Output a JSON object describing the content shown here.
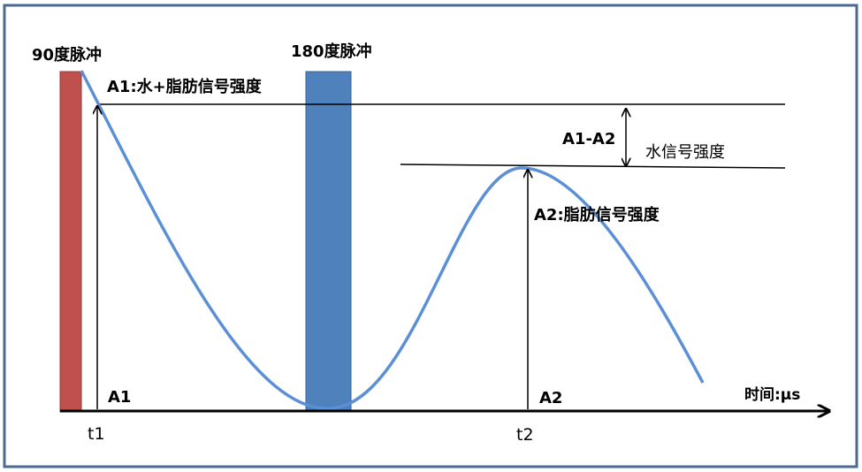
{
  "labels": {
    "pulse90": "90度脉冲",
    "pulse180": "180度脉冲",
    "a1_desc": "A1:水+脂肪信号强度",
    "a1_minus_a2": "A1-A2",
    "water": "水信号强度",
    "a2_desc": "A2:脂肪信号强度",
    "a1": "A1",
    "a2": "A2",
    "time_axis": "时间:μs",
    "t1": "t1",
    "t2": "t2"
  },
  "colors": {
    "frame": "#4a6a94",
    "pulse90": "#c0504d",
    "pulse180": "#4f81bd",
    "curve": "#5b8fd6"
  }
}
